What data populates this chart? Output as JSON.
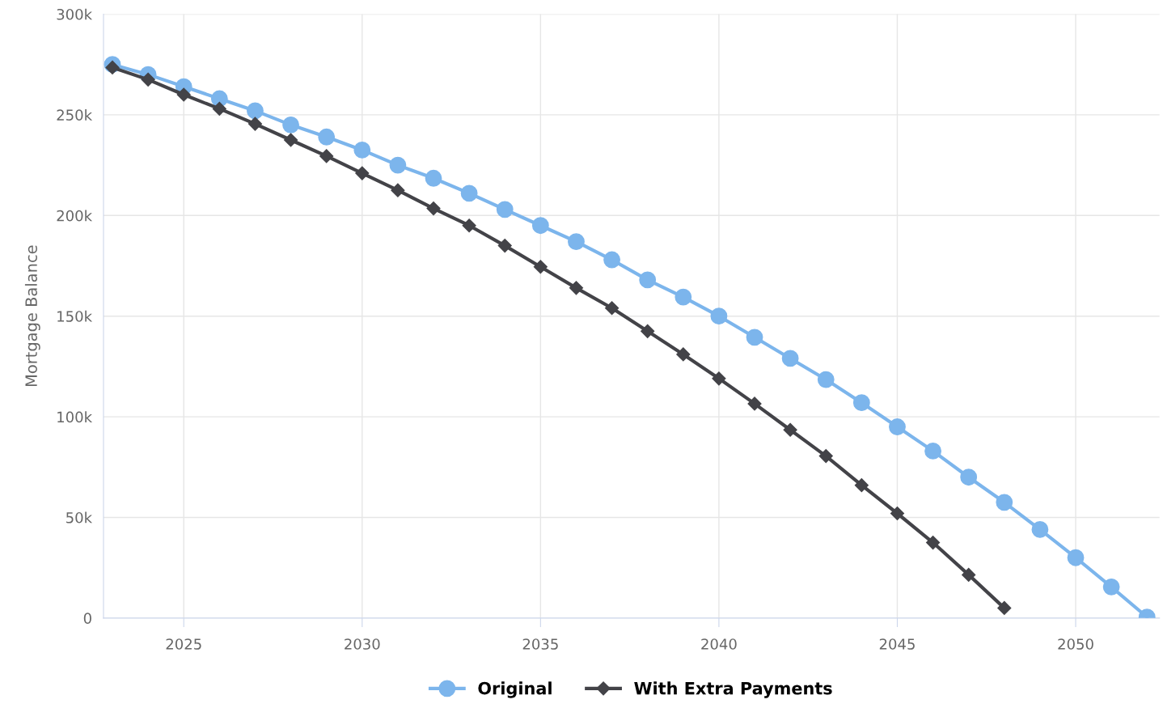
{
  "chart_data": {
    "type": "line",
    "ylabel": "Mortgage Balance",
    "x": [
      2023,
      2024,
      2025,
      2026,
      2027,
      2028,
      2029,
      2030,
      2031,
      2032,
      2033,
      2034,
      2035,
      2036,
      2037,
      2038,
      2039,
      2040,
      2041,
      2042,
      2043,
      2044,
      2045,
      2046,
      2047,
      2048,
      2049,
      2050,
      2051,
      2052
    ],
    "series": [
      {
        "name": "Original",
        "color": "#7cb5ec",
        "marker": "circle",
        "values": [
          275000,
          270000,
          264000,
          258000,
          252000,
          245000,
          239000,
          232500,
          225000,
          218500,
          211000,
          203000,
          195000,
          187000,
          178000,
          168000,
          159500,
          150000,
          139500,
          129000,
          118500,
          107000,
          95000,
          83000,
          70000,
          57500,
          44000,
          30000,
          15500,
          500
        ]
      },
      {
        "name": "With Extra Payments",
        "color": "#434348",
        "marker": "diamond",
        "values": [
          273500,
          267500,
          260000,
          253000,
          245500,
          237500,
          229500,
          221000,
          212500,
          203500,
          195000,
          185000,
          174500,
          164000,
          154000,
          142500,
          131000,
          119000,
          106500,
          93500,
          80500,
          66000,
          52000,
          37500,
          21500,
          5000,
          null,
          null,
          null,
          null
        ]
      }
    ],
    "xlim": [
      2022.75,
      2052.35
    ],
    "xticks": [
      2025,
      2030,
      2035,
      2040,
      2045,
      2050
    ],
    "ylim": [
      0,
      300000
    ],
    "yticks": [
      {
        "value": 0,
        "label": "0"
      },
      {
        "value": 50000,
        "label": "50k"
      },
      {
        "value": 100000,
        "label": "100k"
      },
      {
        "value": 150000,
        "label": "150k"
      },
      {
        "value": 200000,
        "label": "200k"
      },
      {
        "value": 250000,
        "label": "250k"
      },
      {
        "value": 300000,
        "label": "300k"
      }
    ],
    "grid": true,
    "legend": "bottom",
    "line_style": "solid"
  }
}
